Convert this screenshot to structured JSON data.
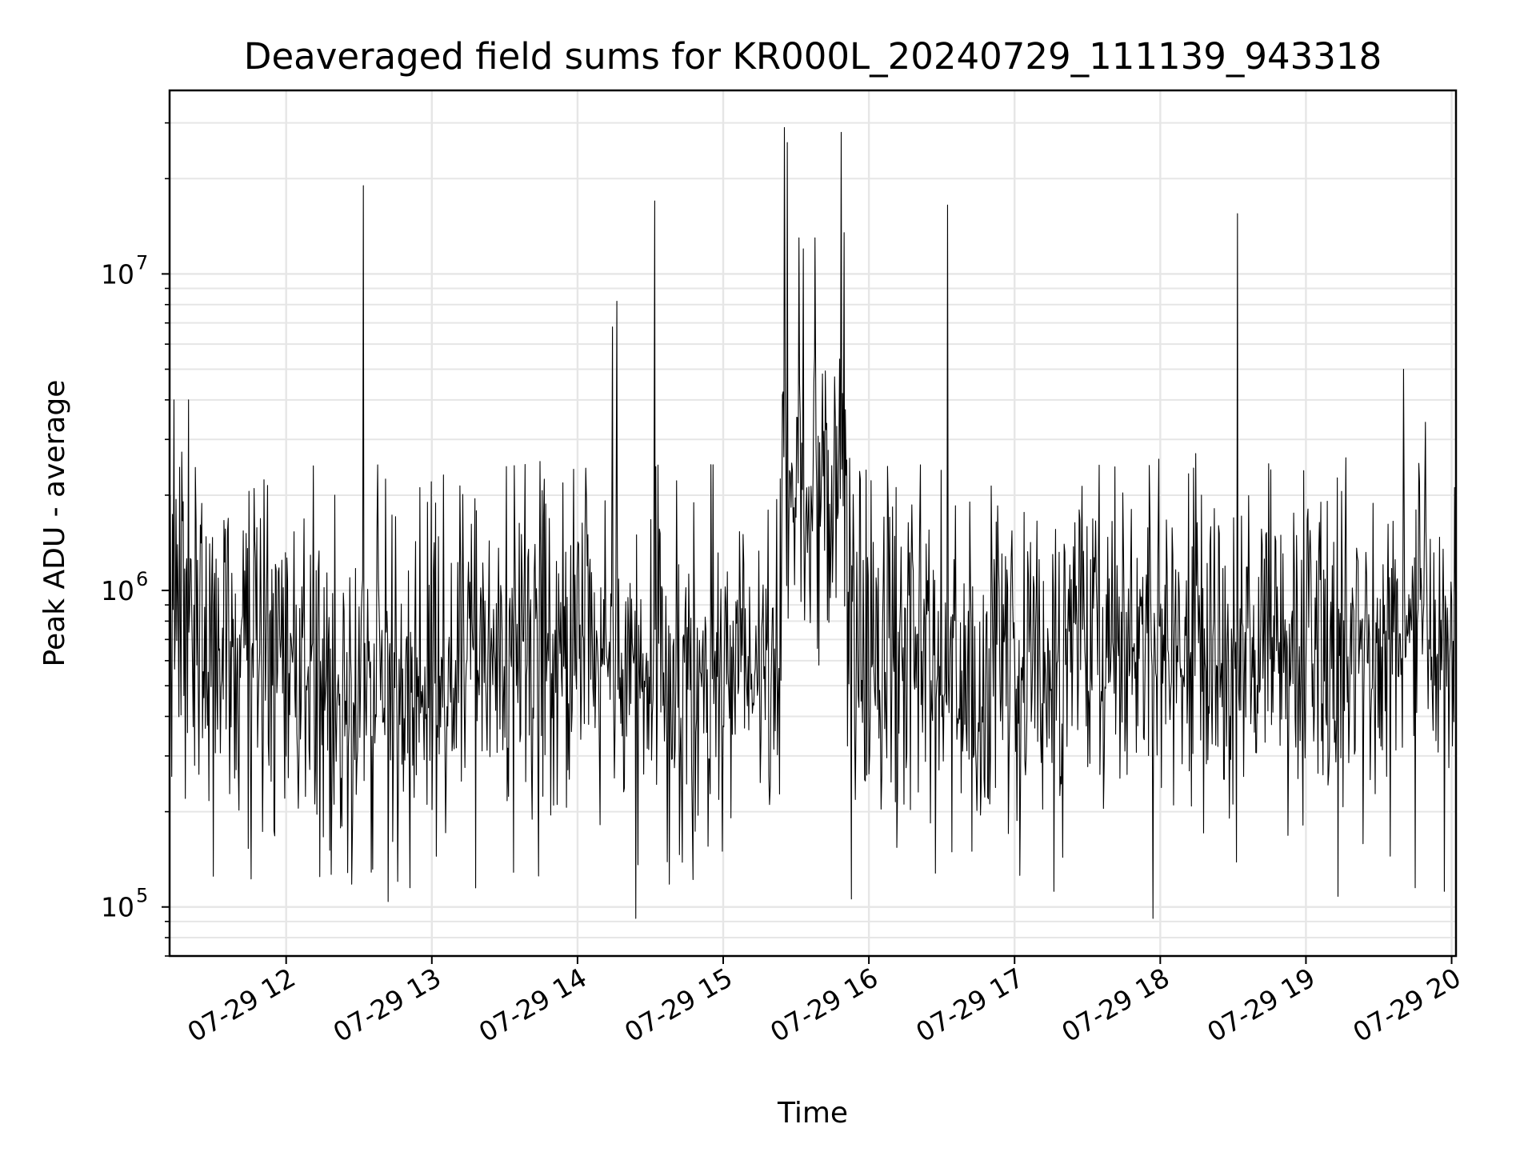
{
  "chart_data": {
    "type": "line",
    "title": "Deaveraged field sums for KR000L_20240729_111139_943318",
    "xlabel": "Time",
    "ylabel": "Peak ADU - average",
    "yscale": "log",
    "x_unit": "hours since 2024-07-29 00:00",
    "xlim": [
      11.2,
      20.03
    ],
    "ylim": [
      70000,
      38000000
    ],
    "x_ticks": [
      12,
      13,
      14,
      15,
      16,
      17,
      18,
      19,
      20
    ],
    "x_tick_labels": [
      "07-29 12",
      "07-29 13",
      "07-29 14",
      "07-29 15",
      "07-29 16",
      "07-29 17",
      "07-29 18",
      "07-29 19",
      "07-29 20"
    ],
    "y_major_ticks": [
      {
        "value": 100000,
        "base": "10",
        "exp": "5"
      },
      {
        "value": 1000000,
        "base": "10",
        "exp": "6"
      },
      {
        "value": 10000000,
        "base": "10",
        "exp": "7"
      }
    ],
    "grid": true,
    "line_color": "#000000",
    "grid_color": "#e6e6e6",
    "series": [
      {
        "name": "Peak ADU - average",
        "segments": [
          {
            "start": 11.2,
            "end": 11.5,
            "median": 1000000,
            "end_median": 700000,
            "spread": 0.28
          },
          {
            "start": 11.5,
            "end": 12.2,
            "median": 580000,
            "end_median": 520000,
            "spread": 0.28
          },
          {
            "start": 12.2,
            "end": 13.0,
            "median": 500000,
            "end_median": 480000,
            "spread": 0.28
          },
          {
            "start": 13.0,
            "end": 14.1,
            "median": 560000,
            "end_median": 650000,
            "spread": 0.28
          },
          {
            "start": 14.1,
            "end": 15.4,
            "median": 560000,
            "end_median": 580000,
            "spread": 0.26
          },
          {
            "start": 15.4,
            "end": 15.85,
            "median": 2200000,
            "end_median": 2200000,
            "spread": 0.24
          },
          {
            "start": 15.85,
            "end": 17.4,
            "median": 620000,
            "end_median": 530000,
            "spread": 0.28
          },
          {
            "start": 17.4,
            "end": 18.6,
            "median": 680000,
            "end_median": 680000,
            "spread": 0.26
          },
          {
            "start": 18.6,
            "end": 20.03,
            "median": 700000,
            "end_median": 760000,
            "spread": 0.27
          }
        ],
        "spikes": [
          {
            "x": 11.23,
            "y": 4000000
          },
          {
            "x": 11.33,
            "y": 4000000
          },
          {
            "x": 11.78,
            "y": 2100000
          },
          {
            "x": 12.53,
            "y": 19000000
          },
          {
            "x": 12.97,
            "y": 1900000
          },
          {
            "x": 13.64,
            "y": 2500000
          },
          {
            "x": 14.24,
            "y": 6800000
          },
          {
            "x": 14.27,
            "y": 8200000
          },
          {
            "x": 14.53,
            "y": 17000000
          },
          {
            "x": 15.42,
            "y": 29000000
          },
          {
            "x": 15.44,
            "y": 26000000
          },
          {
            "x": 15.52,
            "y": 13000000
          },
          {
            "x": 15.55,
            "y": 12000000
          },
          {
            "x": 15.63,
            "y": 13000000
          },
          {
            "x": 15.81,
            "y": 28000000
          },
          {
            "x": 15.83,
            "y": 13500000
          },
          {
            "x": 16.54,
            "y": 16500000
          },
          {
            "x": 17.99,
            "y": 2600000
          },
          {
            "x": 18.53,
            "y": 15500000
          },
          {
            "x": 19.67,
            "y": 5000000
          },
          {
            "x": 19.82,
            "y": 3400000
          }
        ],
        "dips": [
          {
            "x": 11.5,
            "y": 125000
          },
          {
            "x": 12.45,
            "y": 118000
          },
          {
            "x": 12.7,
            "y": 104000
          },
          {
            "x": 12.85,
            "y": 115000
          },
          {
            "x": 14.4,
            "y": 92000
          },
          {
            "x": 14.63,
            "y": 118000
          },
          {
            "x": 15.88,
            "y": 106000
          },
          {
            "x": 17.27,
            "y": 112000
          },
          {
            "x": 17.95,
            "y": 92000
          },
          {
            "x": 19.22,
            "y": 108000
          },
          {
            "x": 19.75,
            "y": 115000
          },
          {
            "x": 19.95,
            "y": 112000
          }
        ]
      }
    ]
  }
}
